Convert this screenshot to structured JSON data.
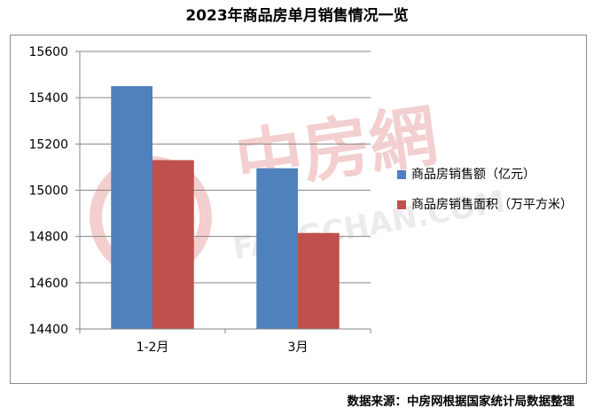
{
  "title": "2023年商品房单月销售情况一览",
  "source_note": "数据来源：中房网根据国家统计局数据整理",
  "watermark": {
    "brand_cn": "中房網",
    "brand_en": "FANGCHAN.COM"
  },
  "colors": {
    "series1": "#4f81bd",
    "series2": "#c0504d",
    "grid": "#868686",
    "watermark": "#e8a0a0"
  },
  "chart_data": {
    "type": "bar",
    "categories": [
      "1-2月",
      "3月"
    ],
    "series": [
      {
        "name": "商品房销售额（亿元）",
        "values": [
          15450,
          15095
        ]
      },
      {
        "name": "商品房销售面积（万平方米）",
        "values": [
          15130,
          14815
        ]
      }
    ],
    "yticks": [
      14400,
      14600,
      14800,
      15000,
      15200,
      15400,
      15600
    ],
    "ylim": [
      14400,
      15600
    ],
    "grid": true,
    "legend_position": "right"
  }
}
